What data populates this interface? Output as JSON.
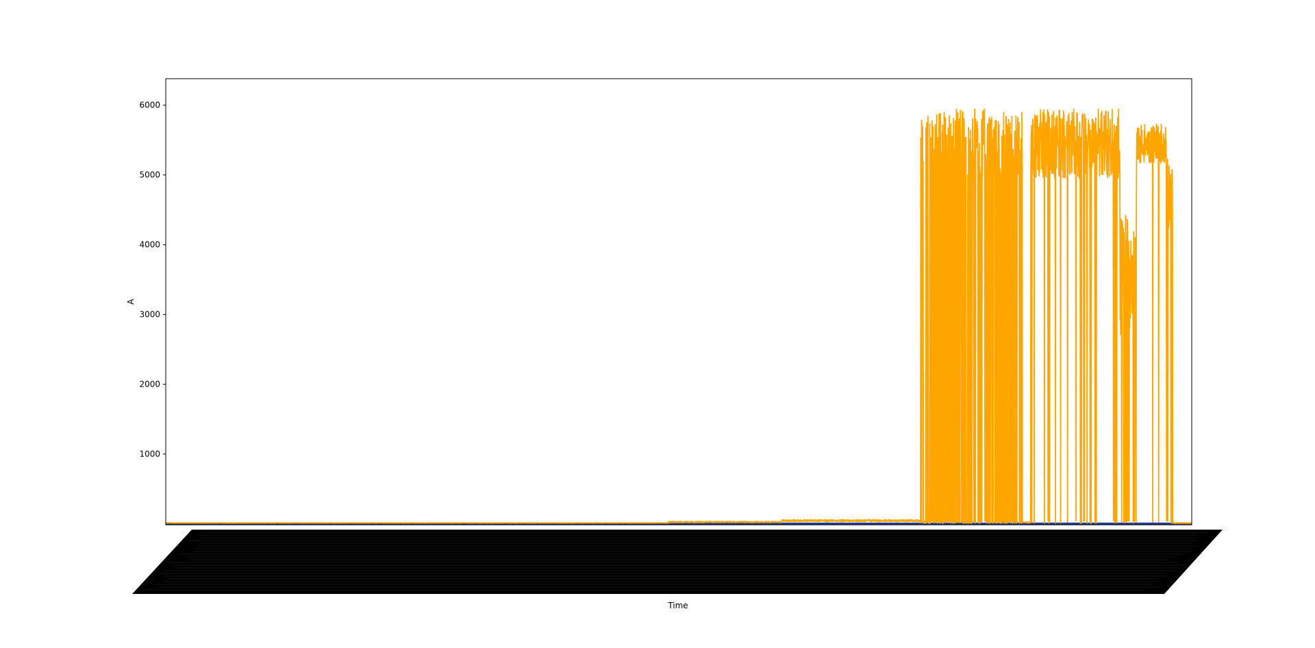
{
  "chart_data": {
    "type": "line",
    "title": "",
    "xlabel": "Time",
    "ylabel": "A",
    "ylim": [
      -15,
      6380
    ],
    "yticks": [
      1000,
      2000,
      3000,
      4000,
      5000,
      6000
    ],
    "xtick_labels_note": "thousands of overlapping rotated timestamp labels (illegible)",
    "grid": false,
    "legend": "none",
    "n_points": 4000,
    "series": [
      {
        "color": "#FFA500",
        "segments": [
          {
            "from": 0.0,
            "to": 0.49,
            "pattern": "flat",
            "level": 12,
            "noise": 3
          },
          {
            "from": 0.49,
            "to": 0.6,
            "pattern": "flat",
            "level": 25,
            "noise": 10
          },
          {
            "from": 0.6,
            "to": 0.735,
            "pattern": "flat",
            "level": 45,
            "noise": 15
          },
          {
            "from": 0.735,
            "to": 0.765,
            "pattern": "switching",
            "high": 5500,
            "spread": 450,
            "low": 5,
            "p_high": 0.55
          },
          {
            "from": 0.765,
            "to": 0.835,
            "pattern": "switching",
            "high": 5450,
            "spread": 500,
            "low": 5,
            "p_high": 0.6
          },
          {
            "from": 0.835,
            "to": 0.843,
            "pattern": "flat",
            "level": 20,
            "noise": 8
          },
          {
            "from": 0.843,
            "to": 0.93,
            "pattern": "switching",
            "high": 5450,
            "spread": 500,
            "low": 5,
            "p_high": 0.93
          },
          {
            "from": 0.93,
            "to": 0.946,
            "pattern": "switching",
            "high": 3600,
            "spread": 900,
            "low": 5,
            "p_high": 0.8
          },
          {
            "from": 0.946,
            "to": 0.975,
            "pattern": "switching",
            "high": 5450,
            "spread": 280,
            "low": 5,
            "p_high": 0.96
          },
          {
            "from": 0.975,
            "to": 0.982,
            "pattern": "switching",
            "high": 4600,
            "spread": 700,
            "low": 5,
            "p_high": 0.7
          },
          {
            "from": 0.982,
            "to": 1.0,
            "pattern": "flat",
            "level": 10,
            "noise": 5
          }
        ]
      },
      {
        "color": "#1F3A93",
        "segments": [
          {
            "from": 0.0,
            "to": 1.0,
            "pattern": "flat",
            "level": 2,
            "noise": 1
          }
        ]
      }
    ]
  }
}
